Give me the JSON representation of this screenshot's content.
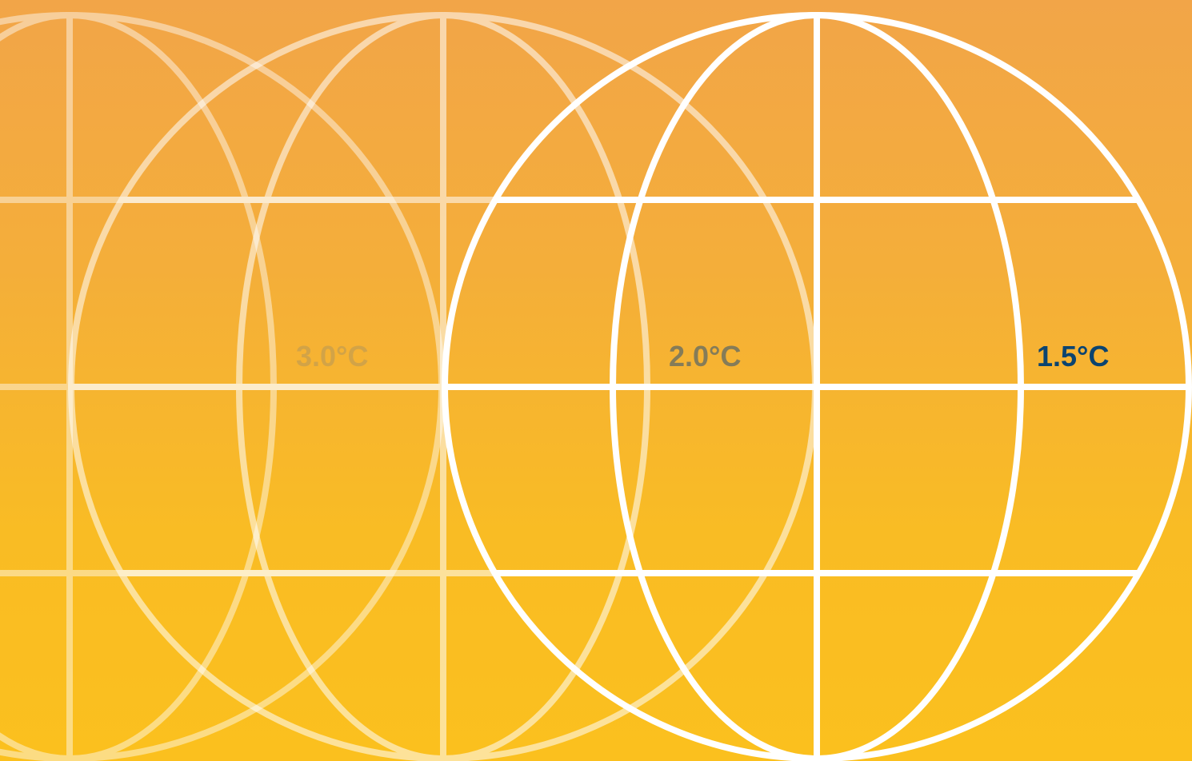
{
  "globes": [
    {
      "label": "3.0°C",
      "label_color": "#D2A347",
      "opacity": 0.45
    },
    {
      "label": "2.0°C",
      "label_color": "#857C58",
      "opacity": 0.7
    },
    {
      "label": "1.5°C",
      "label_color": "#0B4470",
      "opacity": 1.0
    }
  ],
  "colors": {
    "background_top": "#F2A548",
    "background_bottom": "#FBC01E",
    "globe_stroke": "#FFFFFF"
  }
}
